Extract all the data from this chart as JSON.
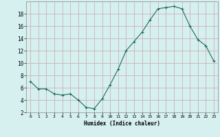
{
  "x": [
    0,
    1,
    2,
    3,
    4,
    5,
    6,
    7,
    8,
    9,
    10,
    11,
    12,
    13,
    14,
    15,
    16,
    17,
    18,
    19,
    20,
    21,
    22,
    23
  ],
  "y": [
    7.0,
    5.8,
    5.8,
    5.0,
    4.8,
    5.0,
    4.0,
    2.8,
    2.6,
    4.2,
    6.5,
    9.0,
    12.0,
    13.5,
    15.0,
    17.0,
    18.8,
    19.0,
    19.2,
    18.8,
    16.0,
    13.8,
    12.8,
    10.3
  ],
  "xlabel": "Humidex (Indice chaleur)",
  "ylim": [
    2,
    20
  ],
  "xlim": [
    -0.5,
    23.5
  ],
  "yticks": [
    2,
    4,
    6,
    8,
    10,
    12,
    14,
    16,
    18
  ],
  "xticks": [
    0,
    1,
    2,
    3,
    4,
    5,
    6,
    7,
    8,
    9,
    10,
    11,
    12,
    13,
    14,
    15,
    16,
    17,
    18,
    19,
    20,
    21,
    22,
    23
  ],
  "line_color": "#1a6b5a",
  "bg_color": "#d6efef",
  "grid_major_color": "#c8a8a8",
  "grid_minor_color": "#d8b8b8"
}
